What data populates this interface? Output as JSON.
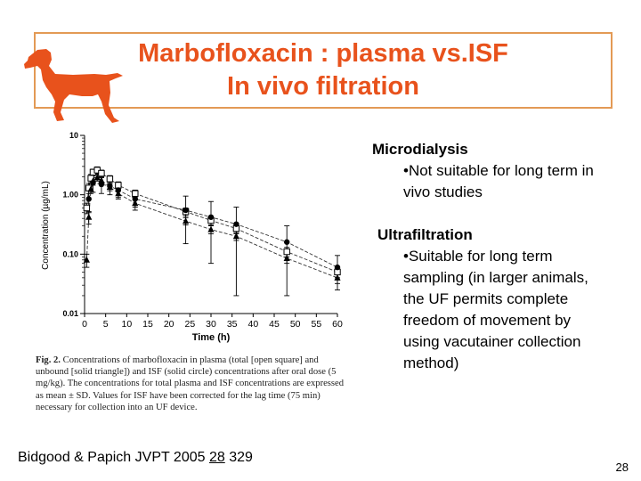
{
  "slide": {
    "title_line1": "Marbofloxacin : plasma vs.ISF",
    "title_line2": "In vivo filtration",
    "title_color": "#e8521c",
    "border_color": "#e39a55",
    "logo_icon": "dog-silhouette-icon",
    "microdialysis_heading": "Microdialysis",
    "microdialysis_bullet": "•Not suitable for long term in vivo  studies",
    "ultrafiltration_heading": "Ultrafiltration",
    "ultrafiltration_bullet": "•Suitable for long term sampling (in larger animals, the UF permits complete freedom of movement by using vacutainer collection method)",
    "citation_prefix": "Bidgood & Papich JVPT 2005 ",
    "citation_volume": "28",
    "citation_page": " 329",
    "page_number": "28"
  },
  "figure": {
    "caption_label": "Fig. 2.",
    "caption_text": "Concentrations of marbofloxacin in plasma (total [open square] and unbound [solid triangle]) and ISF (solid circle) concentrations after oral dose (5 mg/kg). The concentrations for total plasma and ISF concentrations are expressed as mean ± SD. Values for ISF have been corrected for the lag time (75 min) necessary for collection into an UF device."
  },
  "chart_data": {
    "type": "line",
    "xlabel": "Time (h)",
    "ylabel": "Concentration (µg/mL)",
    "xlim": [
      0,
      60
    ],
    "ylim": [
      0.01,
      10
    ],
    "yscale": "log",
    "xticks": [
      "0",
      "5",
      "10",
      "15",
      "20",
      "25",
      "30",
      "35",
      "40",
      "45",
      "50",
      "55",
      "60"
    ],
    "yticks": [
      "10",
      "1.00",
      "0.10",
      "0.01"
    ],
    "series": [
      {
        "marker": "open-square",
        "x": [
          0.5,
          1,
          1.5,
          2,
          3,
          4,
          6,
          8,
          12,
          24,
          30,
          36,
          48,
          60
        ],
        "y": [
          0.6,
          1.3,
          1.9,
          2.4,
          2.6,
          2.3,
          1.85,
          1.45,
          1.05,
          0.52,
          0.37,
          0.27,
          0.11,
          0.05
        ],
        "sd": [
          0.12,
          0.25,
          0.3,
          0.3,
          0.35,
          0.3,
          0.25,
          0.2,
          0.15,
          0.08,
          0.06,
          0.05,
          0.02,
          0.01
        ]
      },
      {
        "marker": "solid-triangle",
        "x": [
          0.5,
          1,
          1.5,
          2,
          3,
          4,
          6,
          8,
          12,
          24,
          30,
          36,
          48,
          60
        ],
        "y": [
          0.08,
          0.42,
          1.25,
          1.7,
          1.95,
          1.75,
          1.35,
          1.05,
          0.72,
          0.36,
          0.26,
          0.2,
          0.085,
          0.04
        ],
        "sd": [
          0.02,
          0.1,
          0.2,
          0.25,
          0.25,
          0.2,
          0.18,
          0.15,
          0.1,
          0.05,
          0.04,
          0.03,
          0.015,
          0.008
        ]
      },
      {
        "marker": "solid-circle",
        "x": [
          1,
          2,
          4,
          6,
          8,
          12,
          24,
          30,
          36,
          48,
          60
        ],
        "y": [
          0.85,
          1.6,
          1.5,
          1.4,
          1.2,
          0.85,
          0.55,
          0.42,
          0.32,
          0.16,
          0.06
        ],
        "sd": [
          0.35,
          0.5,
          0.45,
          0.4,
          0.35,
          0.3,
          0.4,
          0.35,
          0.3,
          0.14,
          0.035
        ]
      }
    ]
  }
}
